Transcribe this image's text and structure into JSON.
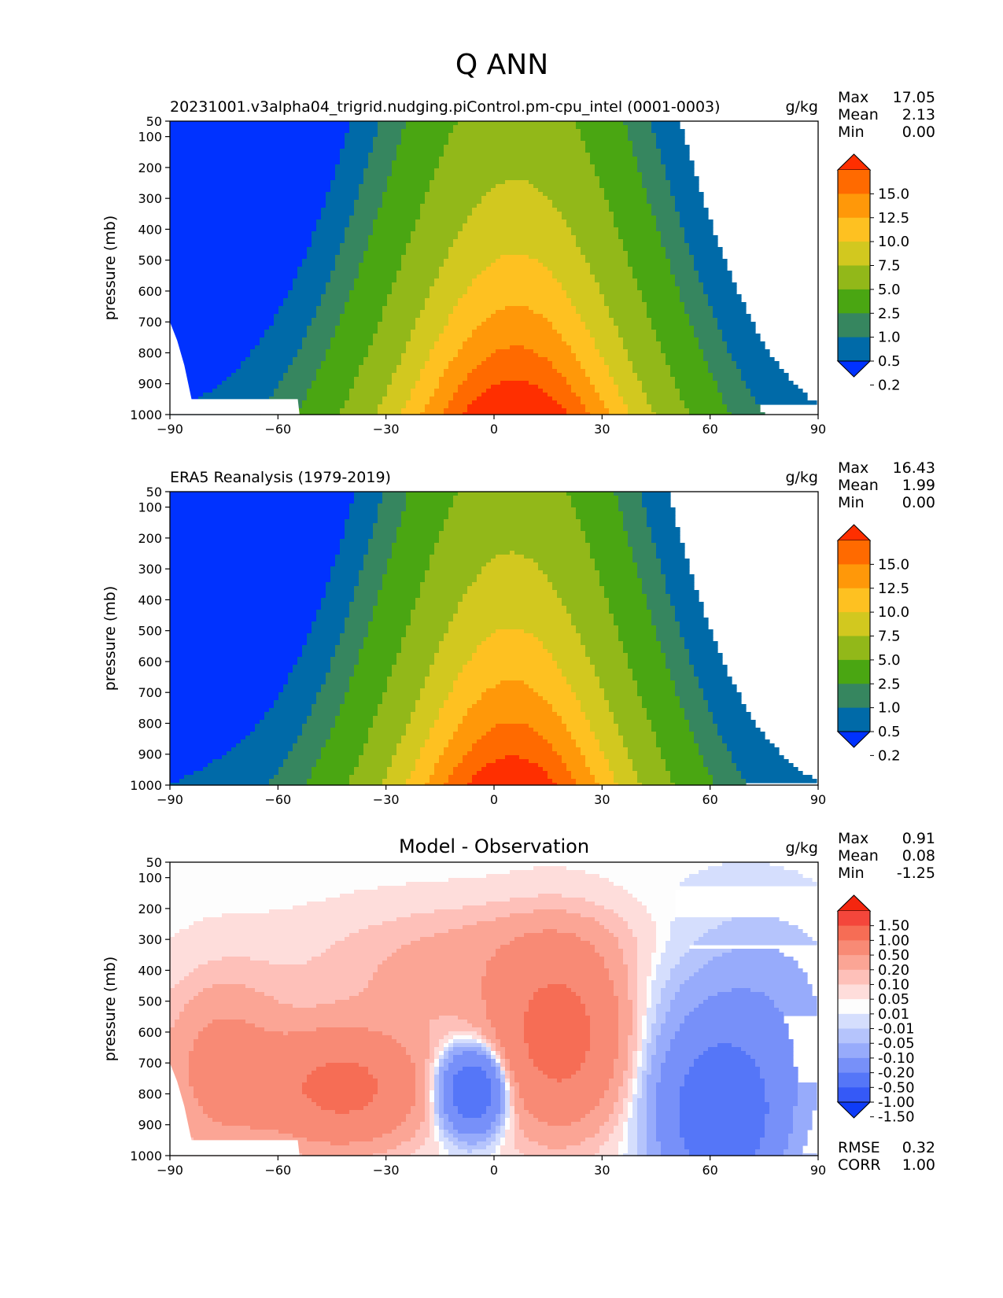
{
  "figure_title": "Q ANN",
  "colors": {
    "main_levels": [
      "#0032ff",
      "#006aa8",
      "#36865f",
      "#4aa612",
      "#92b819",
      "#d2c81f",
      "#fec121",
      "#ff9809",
      "#ff6a00",
      "#ff2f00"
    ],
    "diff_levels": [
      "#0f3cf7",
      "#3559f7",
      "#5576f8",
      "#7790f9",
      "#97abfb",
      "#b5c4fc",
      "#d5defd",
      "#fdfdfd",
      "#fedddb",
      "#fec0b9",
      "#fba595",
      "#f88a75",
      "#f66d55",
      "#f4463b",
      "#f4260f"
    ]
  },
  "chart_data": [
    {
      "type": "contour",
      "title": "20231001.v3alpha04_trigrid.nudging.piControl.pm-cpu_intel (0001-0003)",
      "units": "g/kg",
      "ylabel": "pressure (mb)",
      "xlim": [
        -90,
        90
      ],
      "ylim": [
        1000,
        50
      ],
      "xticks": [
        -90,
        -60,
        -30,
        0,
        30,
        60,
        90
      ],
      "yticks": [
        50,
        100,
        200,
        300,
        400,
        500,
        600,
        700,
        800,
        900,
        1000
      ],
      "stats": [
        {
          "label": "Max",
          "value": "17.05"
        },
        {
          "label": "Mean",
          "value": "2.13"
        },
        {
          "label": "Min",
          "value": "0.00"
        }
      ],
      "colorbar_labels": [
        "15.0",
        "12.5",
        "10.0",
        "7.5",
        "5.0",
        "2.5",
        "1.0",
        "0.5",
        "0.2"
      ],
      "masked_below_surface": true
    },
    {
      "type": "contour",
      "title": "ERA5 Reanalysis (1979-2019)",
      "units": "g/kg",
      "ylabel": "pressure (mb)",
      "xlim": [
        -90,
        90
      ],
      "ylim": [
        1000,
        50
      ],
      "xticks": [
        -90,
        -60,
        -30,
        0,
        30,
        60,
        90
      ],
      "yticks": [
        50,
        100,
        200,
        300,
        400,
        500,
        600,
        700,
        800,
        900,
        1000
      ],
      "stats": [
        {
          "label": "Max",
          "value": "16.43"
        },
        {
          "label": "Mean",
          "value": "1.99"
        },
        {
          "label": "Min",
          "value": "0.00"
        }
      ],
      "colorbar_labels": [
        "15.0",
        "12.5",
        "10.0",
        "7.5",
        "5.0",
        "2.5",
        "1.0",
        "0.5",
        "0.2"
      ],
      "masked_below_surface": false
    },
    {
      "type": "contour",
      "title": "Model - Observation",
      "units": "g/kg",
      "ylabel": "pressure (mb)",
      "xlim": [
        -90,
        90
      ],
      "ylim": [
        1000,
        50
      ],
      "xticks": [
        -90,
        -60,
        -30,
        0,
        30,
        60,
        90
      ],
      "yticks": [
        50,
        100,
        200,
        300,
        400,
        500,
        600,
        700,
        800,
        900,
        1000
      ],
      "stats": [
        {
          "label": "Max",
          "value": "0.91"
        },
        {
          "label": "Mean",
          "value": "0.08"
        },
        {
          "label": "Min",
          "value": "-1.25"
        }
      ],
      "colorbar_labels": [
        "1.50",
        "1.00",
        "0.50",
        "0.20",
        "0.10",
        "0.05",
        "0.01",
        "-0.01",
        "-0.05",
        "-0.10",
        "-0.20",
        "-0.50",
        "-1.00",
        "-1.50"
      ],
      "extra_stats": [
        {
          "label": "RMSE",
          "value": "0.32"
        },
        {
          "label": "CORR",
          "value": "1.00"
        }
      ],
      "masked_below_surface": true
    }
  ]
}
